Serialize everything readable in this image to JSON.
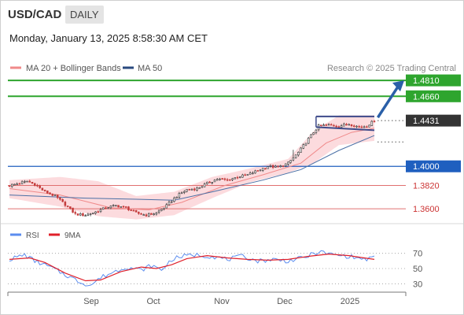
{
  "header": {
    "symbol": "USD/CAD",
    "timeframe": "DAILY",
    "datetime": "Monday, January 13, 2025 8:58:30 AM CET"
  },
  "legend": {
    "bollinger": "MA 20 + Bollinger Bands",
    "ma50": "MA 50",
    "credit": "Research © 2025 Trading Central"
  },
  "colors": {
    "bullish": "#2ea52e",
    "bearish": "#f08080",
    "current": "#333333",
    "support_blue": "#1f5fbf",
    "band_fill": "#fbd5d8",
    "ma20": "#f08a8a",
    "ma50": "#4a6fa5",
    "rsi": "#5b8def",
    "rsi_ma": "#e0202a",
    "arrow": "#2a5fa8"
  },
  "chart_data": [
    {
      "type": "candlestick",
      "title": "USD/CAD Daily",
      "x_ticks": [
        "Sep",
        "Oct",
        "Nov",
        "Dec",
        "2025"
      ],
      "ylim": [
        1.3445,
        1.4855
      ],
      "levels": [
        {
          "value": 1.481,
          "label": "1.4810",
          "kind": "resistance"
        },
        {
          "value": 1.466,
          "label": "1.4660",
          "kind": "resistance"
        },
        {
          "value": 1.4431,
          "label": "1.4431",
          "kind": "current"
        },
        {
          "value": 1.4,
          "label": "1.4000",
          "kind": "pivot"
        },
        {
          "value": 1.382,
          "label": "1.3820",
          "kind": "support"
        },
        {
          "value": 1.36,
          "label": "1.3600",
          "kind": "support"
        }
      ],
      "close_path": [
        [
          0,
          1.382
        ],
        [
          4,
          1.384
        ],
        [
          7,
          1.386
        ],
        [
          10,
          1.383
        ],
        [
          14,
          1.376
        ],
        [
          18,
          1.372
        ],
        [
          22,
          1.364
        ],
        [
          26,
          1.355
        ],
        [
          30,
          1.354
        ],
        [
          34,
          1.357
        ],
        [
          38,
          1.361
        ],
        [
          42,
          1.363
        ],
        [
          46,
          1.361
        ],
        [
          50,
          1.356
        ],
        [
          54,
          1.354
        ],
        [
          58,
          1.356
        ],
        [
          62,
          1.363
        ],
        [
          66,
          1.372
        ],
        [
          70,
          1.378
        ],
        [
          74,
          1.379
        ],
        [
          78,
          1.384
        ],
        [
          82,
          1.388
        ],
        [
          86,
          1.387
        ],
        [
          90,
          1.39
        ],
        [
          94,
          1.392
        ],
        [
          98,
          1.396
        ],
        [
          102,
          1.4
        ],
        [
          106,
          1.399
        ],
        [
          110,
          1.403
        ],
        [
          114,
          1.413
        ],
        [
          118,
          1.426
        ],
        [
          122,
          1.438
        ],
        [
          126,
          1.439
        ],
        [
          130,
          1.438
        ],
        [
          134,
          1.44
        ],
        [
          138,
          1.437
        ],
        [
          141,
          1.438
        ],
        [
          144,
          1.4431
        ]
      ],
      "ma20_path": [
        [
          0,
          1.379
        ],
        [
          20,
          1.373
        ],
        [
          40,
          1.361
        ],
        [
          55,
          1.359
        ],
        [
          68,
          1.366
        ],
        [
          85,
          1.382
        ],
        [
          100,
          1.392
        ],
        [
          115,
          1.403
        ],
        [
          125,
          1.422
        ],
        [
          135,
          1.432
        ],
        [
          144,
          1.436
        ]
      ],
      "ma50_path": [
        [
          0,
          1.373
        ],
        [
          30,
          1.37
        ],
        [
          50,
          1.369
        ],
        [
          65,
          1.368
        ],
        [
          80,
          1.376
        ],
        [
          100,
          1.387
        ],
        [
          115,
          1.397
        ],
        [
          130,
          1.415
        ],
        [
          144,
          1.429
        ]
      ],
      "band_upper_path": [
        [
          0,
          1.387
        ],
        [
          20,
          1.39
        ],
        [
          35,
          1.386
        ],
        [
          50,
          1.372
        ],
        [
          65,
          1.376
        ],
        [
          80,
          1.39
        ],
        [
          95,
          1.398
        ],
        [
          110,
          1.407
        ],
        [
          120,
          1.433
        ],
        [
          130,
          1.448
        ],
        [
          144,
          1.448
        ]
      ],
      "band_lower_path": [
        [
          0,
          1.37
        ],
        [
          20,
          1.362
        ],
        [
          35,
          1.353
        ],
        [
          50,
          1.35
        ],
        [
          65,
          1.354
        ],
        [
          80,
          1.37
        ],
        [
          95,
          1.385
        ],
        [
          110,
          1.394
        ],
        [
          120,
          1.403
        ],
        [
          130,
          1.42
        ],
        [
          144,
          1.424
        ]
      ],
      "consolidation_box": {
        "from_bar": 121,
        "to_bar": 144,
        "upper": 1.447,
        "lower": 1.435
      },
      "target_arrow": {
        "from_bar": 146,
        "from_value": 1.446,
        "to_value": 1.481
      },
      "forecast_dots": [
        {
          "value": 1.4431
        },
        {
          "value": 1.423
        }
      ]
    },
    {
      "type": "line",
      "title": "RSI",
      "ylim": [
        20,
        80
      ],
      "y_ticks": [
        70,
        50,
        30
      ],
      "series": [
        {
          "name": "RSI",
          "values": [
            [
              0,
              62
            ],
            [
              6,
              68
            ],
            [
              10,
              60
            ],
            [
              16,
              52
            ],
            [
              22,
              42
            ],
            [
              28,
              32
            ],
            [
              32,
              28
            ],
            [
              36,
              38
            ],
            [
              40,
              44
            ],
            [
              46,
              52
            ],
            [
              52,
              48
            ],
            [
              56,
              54
            ],
            [
              60,
              48
            ],
            [
              64,
              62
            ],
            [
              68,
              66
            ],
            [
              74,
              68
            ],
            [
              80,
              66
            ],
            [
              86,
              62
            ],
            [
              92,
              66
            ],
            [
              98,
              60
            ],
            [
              104,
              62
            ],
            [
              110,
              60
            ],
            [
              116,
              64
            ],
            [
              122,
              72
            ],
            [
              128,
              68
            ],
            [
              134,
              66
            ],
            [
              140,
              62
            ],
            [
              144,
              64
            ]
          ]
        },
        {
          "name": "9MA",
          "values": [
            [
              0,
              62
            ],
            [
              8,
              64
            ],
            [
              14,
              58
            ],
            [
              22,
              44
            ],
            [
              30,
              34
            ],
            [
              36,
              35
            ],
            [
              44,
              46
            ],
            [
              52,
              52
            ],
            [
              58,
              50
            ],
            [
              64,
              55
            ],
            [
              70,
              63
            ],
            [
              78,
              67
            ],
            [
              86,
              64
            ],
            [
              94,
              62
            ],
            [
              102,
              61
            ],
            [
              110,
              62
            ],
            [
              118,
              66
            ],
            [
              126,
              69
            ],
            [
              134,
              67
            ],
            [
              140,
              64
            ],
            [
              144,
              62
            ]
          ]
        }
      ]
    }
  ]
}
